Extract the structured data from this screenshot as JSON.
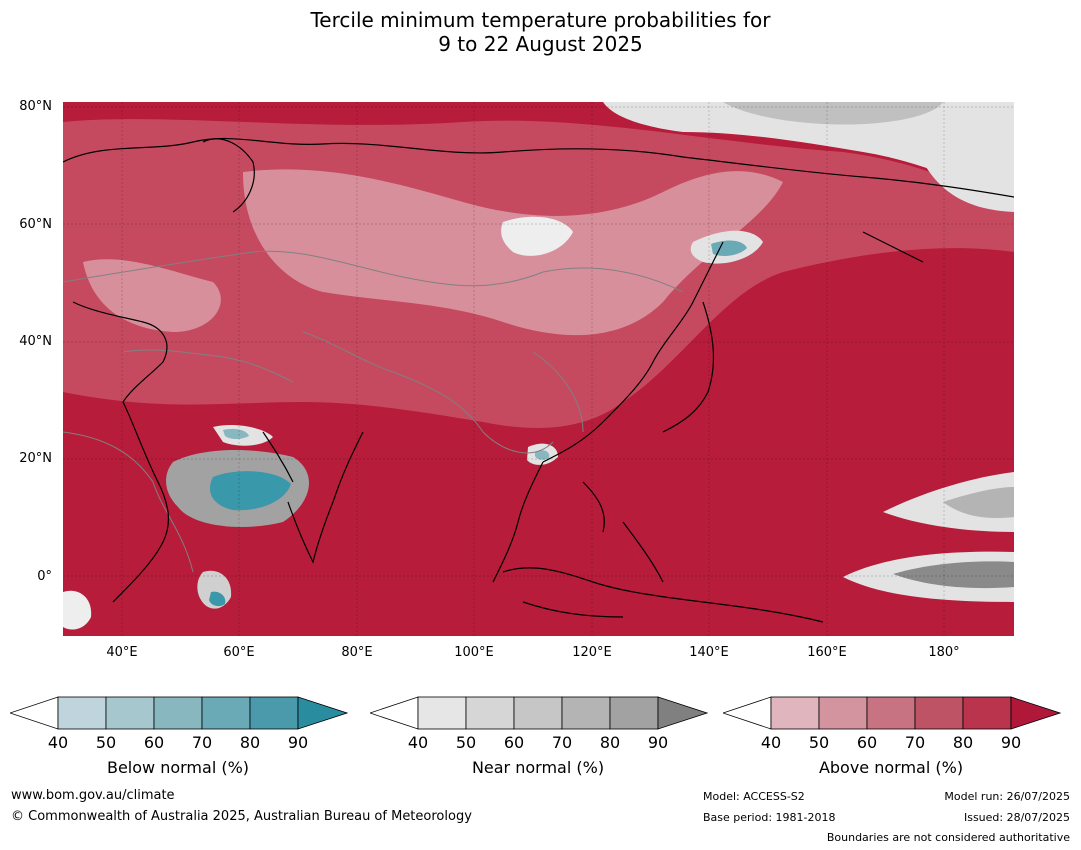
{
  "title": {
    "line1": "Tercile minimum temperature probabilities for",
    "line2": "9 to 22 August 2025"
  },
  "map": {
    "lat_labels": [
      "80°N",
      "60°N",
      "40°N",
      "20°N",
      "0°"
    ],
    "lon_labels": [
      "40°E",
      "60°E",
      "80°E",
      "100°E",
      "120°E",
      "140°E",
      "160°E",
      "180°"
    ],
    "colors": {
      "above_dominant": "#b71c3a",
      "above_mid": "#c54a60",
      "above_light": "#d88f9c",
      "near_light": "#e3e3e3",
      "near_dark": "#8a8a8a",
      "below": "#3a98ab",
      "coastline": "#000000",
      "borders": "#808080"
    }
  },
  "legends": [
    {
      "title": "Below normal (%)",
      "ticks": [
        "40",
        "50",
        "60",
        "70",
        "80",
        "90"
      ],
      "colors": [
        "#ffffff",
        "#bfd4dc",
        "#a6c7ce",
        "#88b7c0",
        "#6aaab6",
        "#4a9aab",
        "#2a8c9f"
      ]
    },
    {
      "title": "Near normal (%)",
      "ticks": [
        "40",
        "50",
        "60",
        "70",
        "80",
        "90"
      ],
      "colors": [
        "#ffffff",
        "#e6e6e6",
        "#d6d6d6",
        "#c6c6c6",
        "#b4b4b4",
        "#a2a2a2",
        "#808080"
      ]
    },
    {
      "title": "Above normal (%)",
      "ticks": [
        "40",
        "50",
        "60",
        "70",
        "80",
        "90"
      ],
      "colors": [
        "#ffffff",
        "#e0b5bd",
        "#d4949f",
        "#c87381",
        "#be5366",
        "#b9344c",
        "#b0183a"
      ]
    }
  ],
  "footer": {
    "website": "www.bom.gov.au/climate",
    "copyright": "© Commonwealth of Australia 2025, Australian Bureau of Meteorology",
    "model": "Model: ACCESS-S2",
    "base_period": "Base period: 1981-2018",
    "model_run": "Model run: 26/07/2025",
    "issued": "Issued: 28/07/2025",
    "disclaimer": "Boundaries are not considered authoritative"
  }
}
